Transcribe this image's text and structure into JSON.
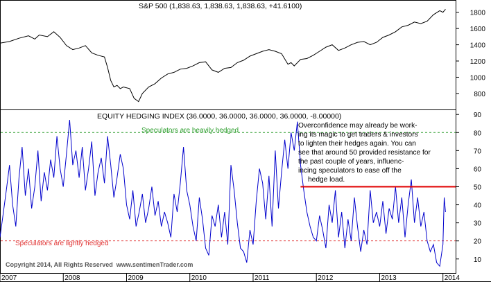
{
  "chart_data": [
    {
      "type": "line",
      "title": "S&P 500 (1,838.63, 1,838.63, 1,838.63, +41.6100)",
      "ylim": [
        620,
        1900
      ],
      "yticks": [
        800,
        1000,
        1200,
        1400,
        1600,
        1800
      ],
      "grid": false,
      "series": [
        {
          "color": "#000000",
          "x": [
            2007.0,
            2007.15,
            2007.3,
            2007.45,
            2007.55,
            2007.62,
            2007.75,
            2007.85,
            2007.95,
            2008.05,
            2008.15,
            2008.25,
            2008.35,
            2008.45,
            2008.55,
            2008.65,
            2008.7,
            2008.75,
            2008.8,
            2008.85,
            2008.9,
            2008.95,
            2009.05,
            2009.12,
            2009.19,
            2009.25,
            2009.35,
            2009.45,
            2009.55,
            2009.65,
            2009.75,
            2009.85,
            2009.95,
            2010.05,
            2010.15,
            2010.25,
            2010.35,
            2010.45,
            2010.55,
            2010.65,
            2010.75,
            2010.85,
            2010.95,
            2011.05,
            2011.15,
            2011.25,
            2011.35,
            2011.45,
            2011.55,
            2011.6,
            2011.65,
            2011.75,
            2011.85,
            2011.95,
            2012.05,
            2012.15,
            2012.25,
            2012.35,
            2012.45,
            2012.55,
            2012.65,
            2012.75,
            2012.85,
            2012.95,
            2013.05,
            2013.15,
            2013.25,
            2013.35,
            2013.45,
            2013.55,
            2013.65,
            2013.75,
            2013.85,
            2013.95,
            2014.0,
            2014.04
          ],
          "y": [
            1420,
            1440,
            1480,
            1510,
            1470,
            1520,
            1500,
            1560,
            1490,
            1390,
            1340,
            1360,
            1390,
            1300,
            1270,
            1250,
            1120,
            960,
            880,
            900,
            860,
            880,
            860,
            740,
            700,
            800,
            880,
            920,
            990,
            1040,
            1060,
            1100,
            1110,
            1140,
            1180,
            1190,
            1090,
            1060,
            1110,
            1120,
            1180,
            1210,
            1260,
            1290,
            1320,
            1340,
            1320,
            1290,
            1160,
            1180,
            1140,
            1220,
            1230,
            1270,
            1320,
            1370,
            1400,
            1330,
            1360,
            1400,
            1430,
            1440,
            1400,
            1430,
            1490,
            1520,
            1560,
            1620,
            1640,
            1680,
            1660,
            1690,
            1770,
            1820,
            1800,
            1838
          ]
        }
      ]
    },
    {
      "type": "line",
      "title": "EQUITY HEDGING INDEX (36.0000, 36.0000, 36.0000, 36.0000, -8.00000)",
      "ylim": [
        3,
        92
      ],
      "yticks": [
        10,
        20,
        30,
        40,
        50,
        60,
        70,
        80,
        90
      ],
      "grid": false,
      "xticks": [
        "2007",
        "2008",
        "2009",
        "2010",
        "2011",
        "2012",
        "2013",
        "2014"
      ],
      "xtick_values": [
        2007,
        2008,
        2009,
        2010,
        2011,
        2012,
        2013,
        2014
      ],
      "reference_lines": [
        {
          "y": 80,
          "color": "#2e9e2e",
          "style": "dashed"
        },
        {
          "y": 20,
          "color": "#e03030",
          "style": "dashed"
        },
        {
          "y": 50,
          "color": "#e00000",
          "style": "solid",
          "x_from": 2011.75
        }
      ],
      "series": [
        {
          "color": "#0000cc",
          "x": [
            2007.0,
            2007.05,
            2007.1,
            2007.15,
            2007.2,
            2007.25,
            2007.3,
            2007.35,
            2007.4,
            2007.45,
            2007.5,
            2007.55,
            2007.6,
            2007.65,
            2007.7,
            2007.75,
            2007.8,
            2007.85,
            2007.9,
            2007.95,
            2008.0,
            2008.05,
            2008.1,
            2008.15,
            2008.2,
            2008.25,
            2008.3,
            2008.35,
            2008.4,
            2008.45,
            2008.5,
            2008.55,
            2008.6,
            2008.65,
            2008.7,
            2008.75,
            2008.8,
            2008.85,
            2008.9,
            2008.95,
            2009.0,
            2009.05,
            2009.1,
            2009.15,
            2009.2,
            2009.25,
            2009.3,
            2009.35,
            2009.4,
            2009.45,
            2009.5,
            2009.55,
            2009.6,
            2009.65,
            2009.7,
            2009.75,
            2009.8,
            2009.85,
            2009.9,
            2009.95,
            2010.0,
            2010.05,
            2010.1,
            2010.15,
            2010.2,
            2010.25,
            2010.3,
            2010.35,
            2010.4,
            2010.45,
            2010.5,
            2010.55,
            2010.6,
            2010.65,
            2010.7,
            2010.75,
            2010.8,
            2010.85,
            2010.9,
            2010.95,
            2011.0,
            2011.05,
            2011.1,
            2011.15,
            2011.2,
            2011.25,
            2011.3,
            2011.35,
            2011.4,
            2011.45,
            2011.5,
            2011.55,
            2011.6,
            2011.65,
            2011.7,
            2011.75,
            2011.8,
            2011.85,
            2011.9,
            2011.95,
            2012.0,
            2012.05,
            2012.1,
            2012.15,
            2012.2,
            2012.25,
            2012.3,
            2012.35,
            2012.4,
            2012.45,
            2012.5,
            2012.55,
            2012.6,
            2012.65,
            2012.7,
            2012.75,
            2012.8,
            2012.85,
            2012.9,
            2012.95,
            2013.0,
            2013.05,
            2013.1,
            2013.15,
            2013.2,
            2013.25,
            2013.3,
            2013.35,
            2013.4,
            2013.45,
            2013.5,
            2013.55,
            2013.6,
            2013.65,
            2013.7,
            2013.75,
            2013.8,
            2013.85,
            2013.9,
            2013.95,
            2014.0,
            2014.02,
            2014.04
          ],
          "y": [
            22,
            35,
            48,
            62,
            40,
            28,
            55,
            72,
            45,
            60,
            38,
            50,
            70,
            42,
            58,
            48,
            65,
            55,
            78,
            60,
            50,
            68,
            87,
            62,
            70,
            55,
            72,
            48,
            60,
            75,
            45,
            58,
            66,
            52,
            78,
            62,
            44,
            55,
            68,
            60,
            40,
            32,
            48,
            28,
            36,
            46,
            30,
            38,
            50,
            34,
            42,
            28,
            36,
            30,
            22,
            46,
            36,
            52,
            72,
            48,
            40,
            28,
            20,
            44,
            32,
            16,
            12,
            34,
            28,
            40,
            22,
            36,
            18,
            62,
            48,
            30,
            16,
            14,
            8,
            26,
            18,
            42,
            60,
            52,
            32,
            56,
            28,
            70,
            38,
            58,
            76,
            60,
            80,
            70,
            86,
            62,
            48,
            36,
            28,
            22,
            20,
            34,
            26,
            16,
            40,
            30,
            48,
            22,
            36,
            16,
            32,
            20,
            44,
            28,
            14,
            26,
            18,
            48,
            30,
            36,
            28,
            42,
            24,
            38,
            32,
            50,
            30,
            44,
            22,
            40,
            54,
            30,
            44,
            28,
            36,
            20,
            14,
            18,
            8,
            6,
            18,
            44,
            36
          ]
        }
      ]
    }
  ],
  "annotations": {
    "heavily_hedged": "Speculators are heavily hedged",
    "lightly_hedged": "Speculators are lightly hedged",
    "copyright": "Copyright 2014, All Rights Reserved  www.sentimenTrader.com",
    "commentary": [
      "Overconfidence may already be work-",
      "ing its magic to get traders & investors",
      "to lighten their hedges again. You can",
      "see that around 50 provided resistance for",
      "the past couple of years, influenc-",
      "incing speculators to ease off the",
      "hedge load."
    ]
  },
  "colors": {
    "sp500_line": "#000000",
    "hedging_line": "#0000cc",
    "heavy_label": "#2e9e2e",
    "light_label": "#e03030",
    "resistance_line": "#e00000",
    "copyright": "#555555"
  }
}
